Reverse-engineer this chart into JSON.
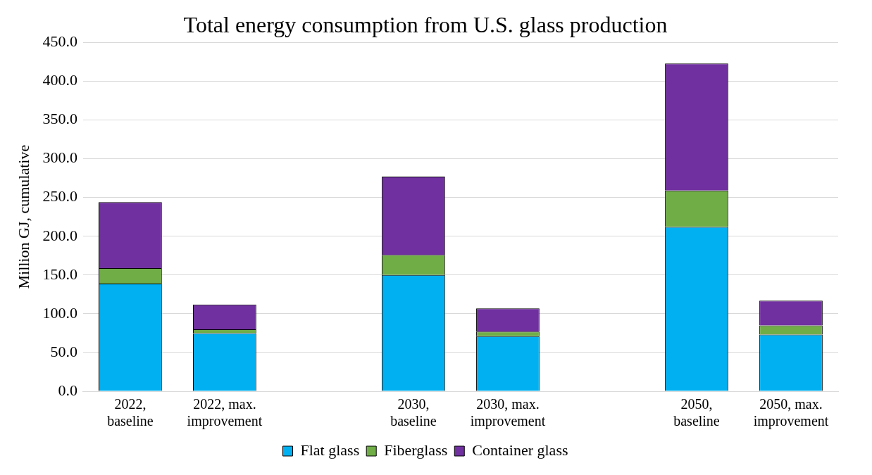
{
  "chart_data": {
    "type": "bar",
    "title": "Total energy consumption from U.S. glass production",
    "ylabel": "Million GJ, cumulative",
    "categories": [
      "2022, baseline",
      "2022, max. improvement",
      null,
      "2030, baseline",
      "2030, max. improvement",
      null,
      "2050, baseline",
      "2050, max. improvement"
    ],
    "series": [
      {
        "name": "Flat glass",
        "color": "#00b0f0",
        "values": [
          139,
          75,
          null,
          150,
          71,
          null,
          212,
          73
        ]
      },
      {
        "name": "Fiberglass",
        "color": "#70ad47",
        "values": [
          20,
          5,
          null,
          26,
          6,
          null,
          47,
          12
        ]
      },
      {
        "name": "Container glass",
        "color": "#7030a0",
        "values": [
          85,
          32,
          null,
          101,
          30,
          null,
          164,
          32
        ]
      }
    ],
    "stacked": true,
    "ylim": [
      0,
      450
    ],
    "yticks": [
      {
        "value": 0,
        "label": "0.0"
      },
      {
        "value": 50,
        "label": "50.0"
      },
      {
        "value": 100,
        "label": "100.0"
      },
      {
        "value": 150,
        "label": "150.0"
      },
      {
        "value": 200,
        "label": "200.0"
      },
      {
        "value": 250,
        "label": "250.0"
      },
      {
        "value": 300,
        "label": "300.0"
      },
      {
        "value": 350,
        "label": "350.0"
      },
      {
        "value": 400,
        "label": "400.0"
      },
      {
        "value": 450,
        "label": "450.0"
      }
    ],
    "grid": "y",
    "legend": "bottom"
  }
}
